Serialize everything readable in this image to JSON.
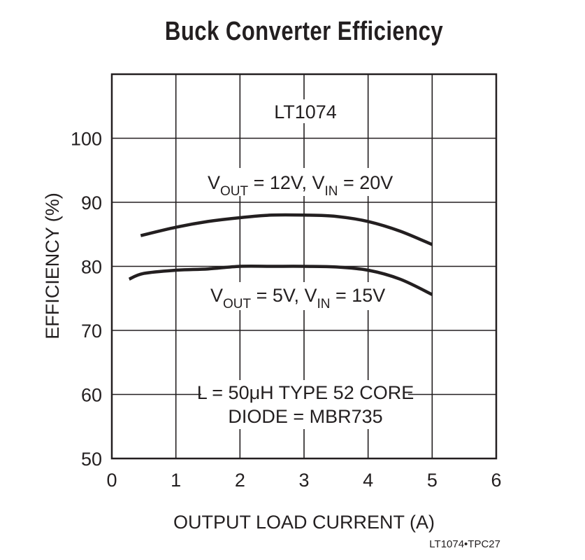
{
  "chart_data": {
    "type": "line",
    "title": "Buck Converter Efficiency",
    "xlabel": "OUTPUT LOAD CURRENT (A)",
    "ylabel": "EFFICIENCY (%)",
    "xlim": [
      0,
      6
    ],
    "ylim": [
      50,
      110
    ],
    "xticks": [
      "0",
      "1",
      "2",
      "3",
      "4",
      "5",
      "6"
    ],
    "yticks": [
      "50",
      "60",
      "70",
      "80",
      "90",
      "100"
    ],
    "grid": true,
    "series": [
      {
        "name_main": "V",
        "label_parts": [
          "V",
          "OUT",
          " = 12V, V",
          "IN",
          " = 20V"
        ],
        "x": [
          0.45,
          1.0,
          1.5,
          2.0,
          2.5,
          3.0,
          3.5,
          4.0,
          4.5,
          5.0
        ],
        "y": [
          84.8,
          86.1,
          87.0,
          87.6,
          88.0,
          88.0,
          87.8,
          87.0,
          85.5,
          83.4
        ]
      },
      {
        "name_main": "V",
        "label_parts": [
          "V",
          "OUT",
          " = 5V, V",
          "IN",
          " = 15V"
        ],
        "x": [
          0.27,
          0.5,
          1.0,
          1.5,
          2.0,
          2.5,
          3.0,
          3.5,
          4.0,
          4.5,
          5.0
        ],
        "y": [
          78.0,
          78.9,
          79.4,
          79.6,
          80.0,
          80.0,
          80.0,
          79.9,
          79.4,
          78.0,
          75.6
        ]
      }
    ],
    "annotations": {
      "part": "LT1074",
      "inductor": "L = 50μH TYPE 52 CORE",
      "diode": "DIODE = MBR735",
      "figure_code": "LT1074•TPC27"
    }
  }
}
